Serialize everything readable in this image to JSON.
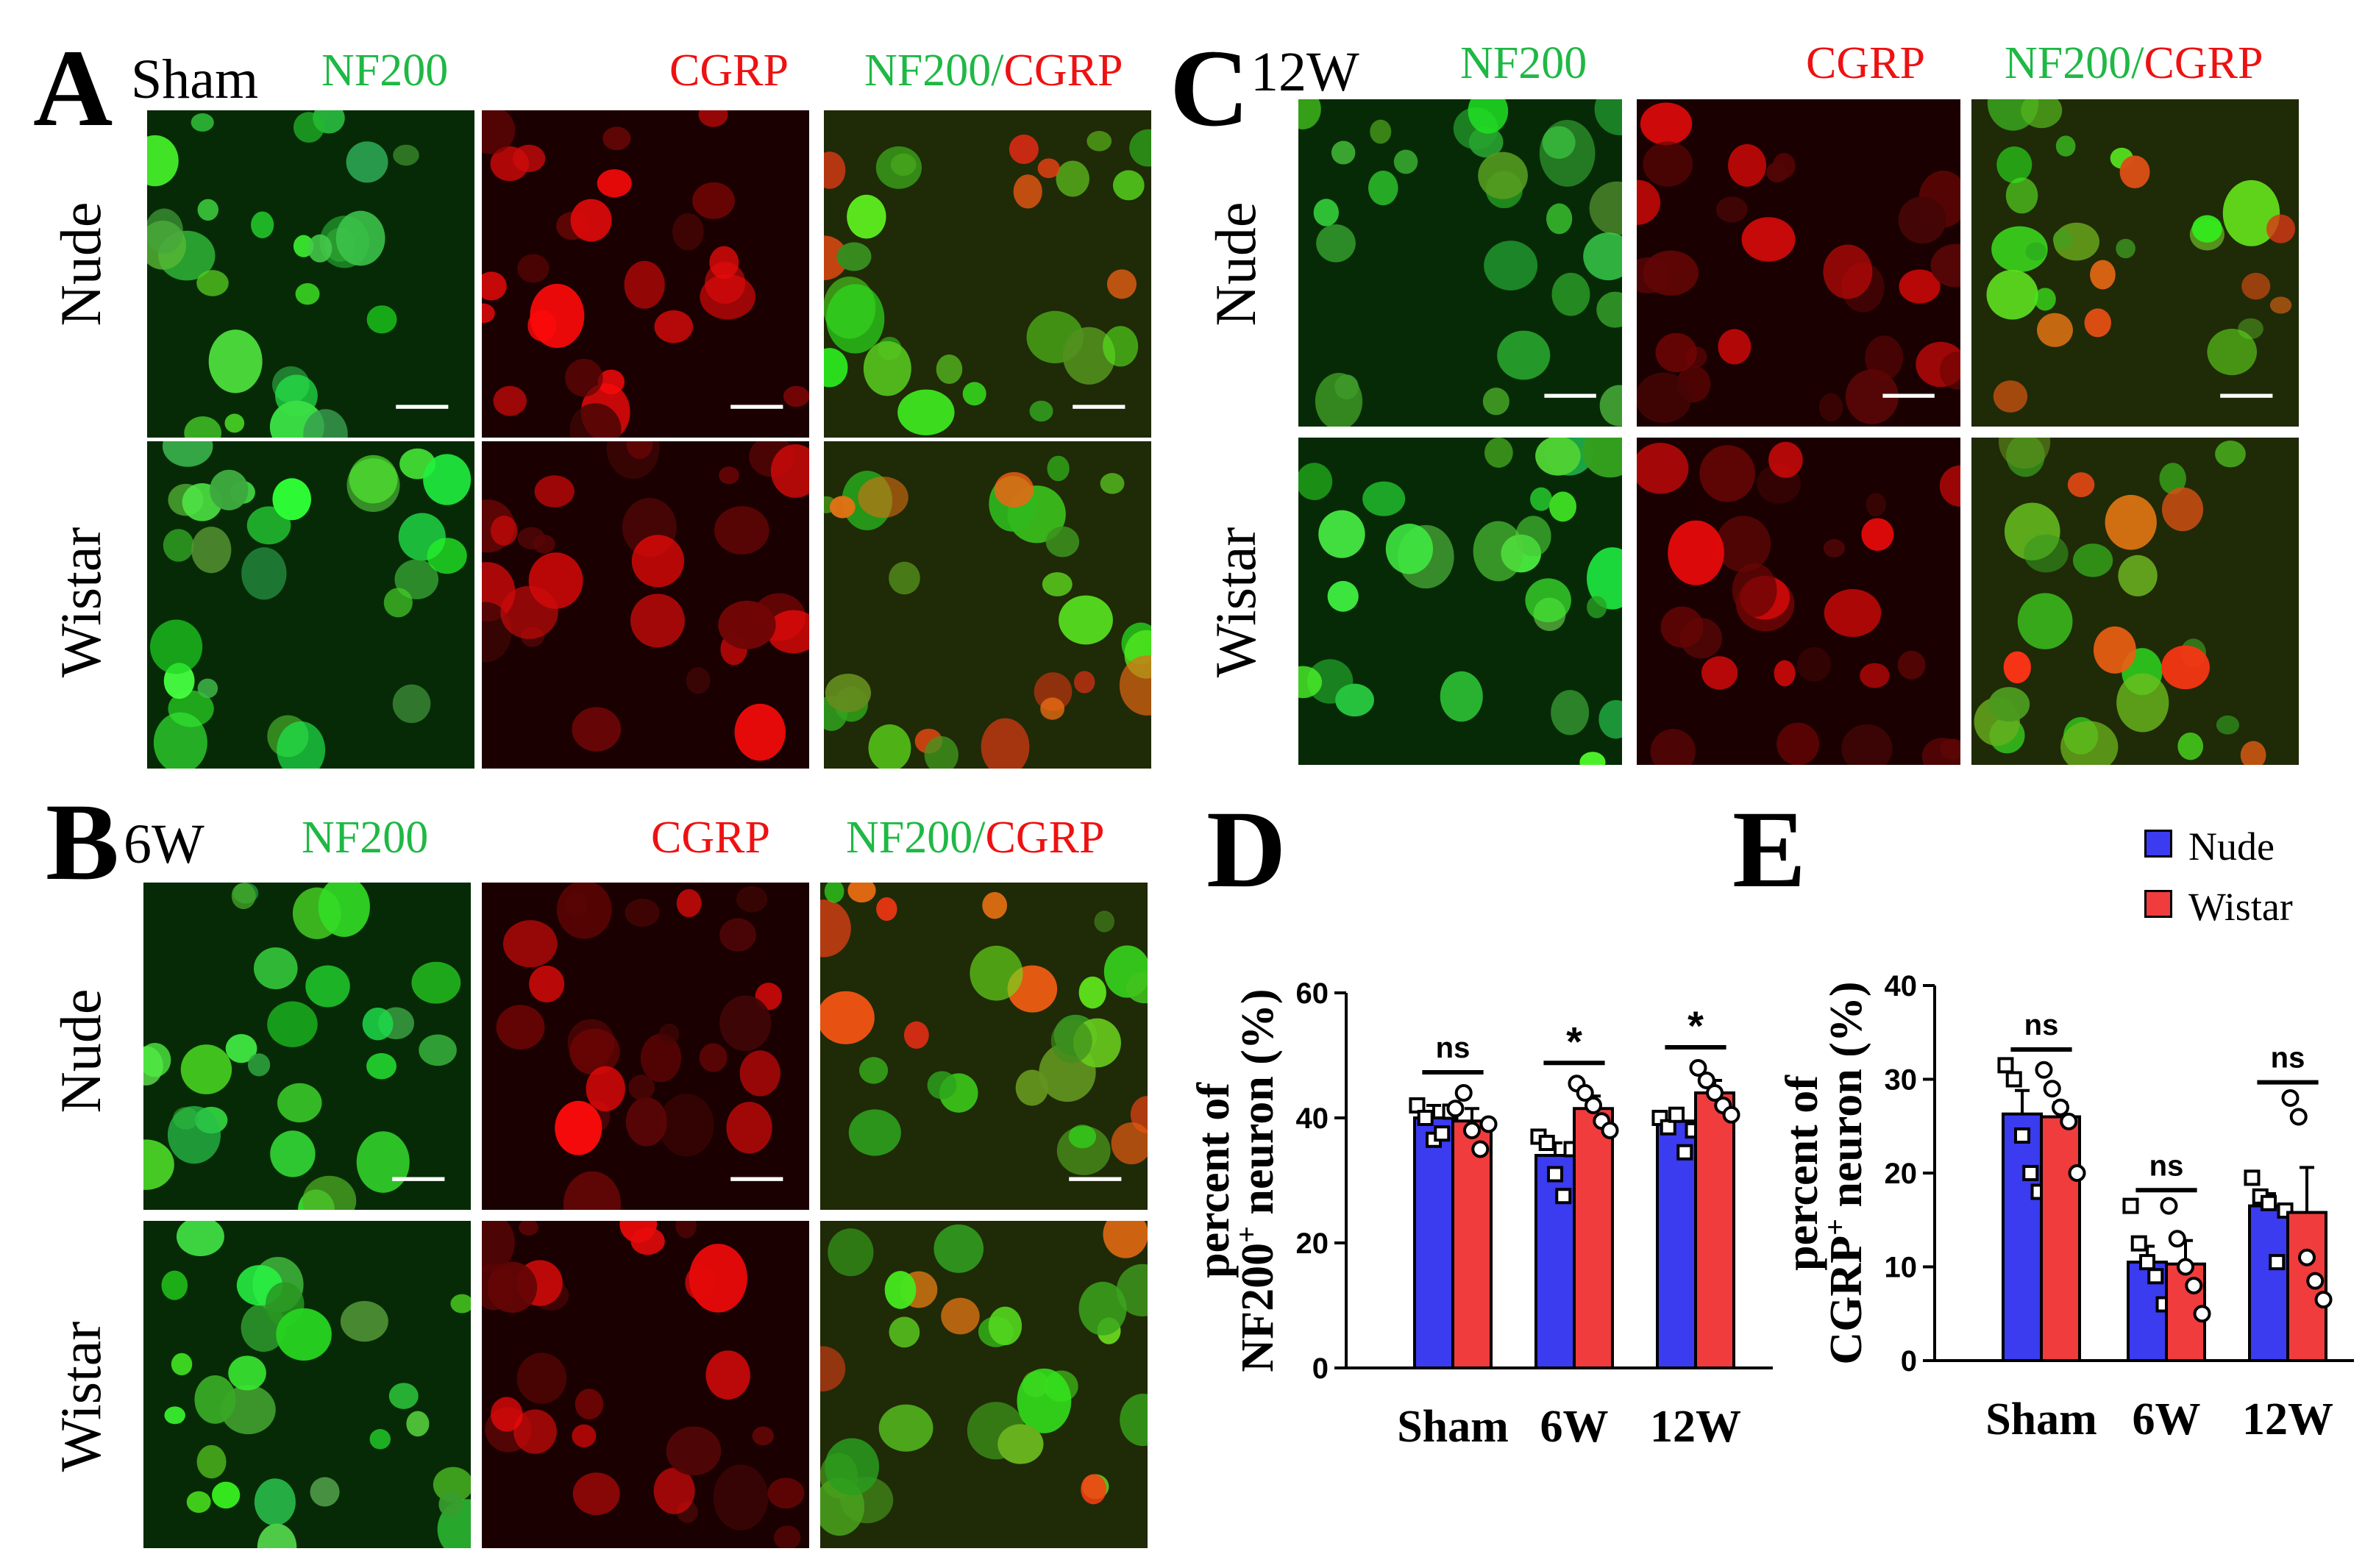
{
  "panels": {
    "A": {
      "letter": "A",
      "timepoint": "Sham"
    },
    "B": {
      "letter": "B",
      "timepoint": "6W"
    },
    "C": {
      "letter": "C",
      "timepoint": "12W"
    },
    "D": {
      "letter": "D"
    },
    "E": {
      "letter": "E"
    }
  },
  "channels": {
    "nf200": "NF200",
    "cgrp": "CGRP",
    "slash": "/"
  },
  "rows": {
    "nude": "Nude",
    "wistar": "Wistar"
  },
  "legend": [
    {
      "label": "Nude",
      "color": "#3b3bf0"
    },
    {
      "label": "Wistar",
      "color": "#f03c3c"
    }
  ],
  "chart_data": [
    {
      "type": "bar",
      "panel": "D",
      "categories": [
        "Sham",
        "6W",
        "12W"
      ],
      "ylabel_line1": "percent of",
      "ylabel_line2_pre": "NF200",
      "ylabel_sup": "+",
      "ylabel_line2_post": " neuron (%)",
      "ylim": [
        0,
        60
      ],
      "yticks": [
        0,
        20,
        40,
        60
      ],
      "series": [
        {
          "name": "Nude",
          "color": "#3b3bf0",
          "values": [
            40,
            34,
            39.5
          ],
          "errors": [
            2,
            2,
            2
          ],
          "points": [
            [
              42,
              40,
              36.5,
              37.5,
              41
            ],
            [
              37,
              36,
              31,
              27.5,
              35
            ],
            [
              40,
              38.5,
              40.5,
              34.5,
              38
            ]
          ]
        },
        {
          "name": "Wistar",
          "color": "#f03c3c",
          "values": [
            39.5,
            41.5,
            44
          ],
          "errors": [
            2,
            2,
            2
          ],
          "points": [
            [
              41.5,
              44,
              38,
              35,
              39
            ],
            [
              45.5,
              44,
              42,
              39.5,
              38
            ],
            [
              48,
              46,
              44,
              42,
              40.5
            ]
          ]
        }
      ],
      "significance": [
        "ns",
        "*",
        "*"
      ]
    },
    {
      "type": "bar",
      "panel": "E",
      "categories": [
        "Sham",
        "6W",
        "12W"
      ],
      "ylabel_line1": "percent of",
      "ylabel_line2_pre": "CGRP",
      "ylabel_sup": "+",
      "ylabel_line2_post": " neuron (%)",
      "ylim": [
        0,
        40
      ],
      "yticks": [
        0,
        10,
        20,
        30,
        40
      ],
      "series": [
        {
          "name": "Nude",
          "color": "#3b3bf0",
          "values": [
            26.3,
            10.5,
            16.5
          ],
          "errors": [
            2.5,
            1.7,
            1.3
          ],
          "points": [
            [
              31.5,
              30,
              24,
              20,
              18
            ],
            [
              16.5,
              12.5,
              10.5,
              9,
              6
            ],
            [
              19.5,
              17.5,
              16.8,
              10.5,
              16
            ]
          ]
        },
        {
          "name": "Wistar",
          "color": "#f03c3c",
          "values": [
            26,
            10.3,
            15.8
          ],
          "errors": [
            1.5,
            2.5,
            4.8
          ],
          "points": [
            [
              31,
              29,
              27,
              25.5,
              20
            ],
            [
              16.5,
              13,
              10,
              8,
              5
            ],
            [
              28,
              26,
              11,
              8.5,
              6.5
            ]
          ]
        }
      ],
      "significance": [
        "ns",
        "ns",
        "ns"
      ]
    }
  ]
}
